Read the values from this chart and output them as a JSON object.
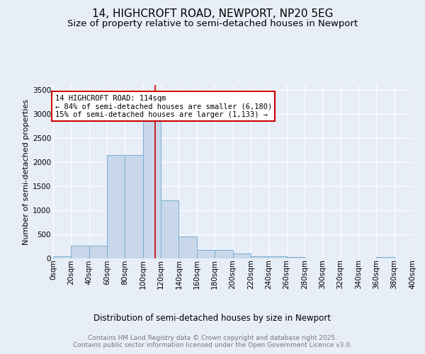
{
  "title1": "14, HIGHCROFT ROAD, NEWPORT, NP20 5EG",
  "title2": "Size of property relative to semi-detached houses in Newport",
  "xlabel": "Distribution of semi-detached houses by size in Newport",
  "ylabel": "Number of semi-detached properties",
  "bin_edges": [
    0,
    20,
    40,
    60,
    80,
    100,
    120,
    140,
    160,
    180,
    200,
    220,
    240,
    260,
    280,
    300,
    320,
    340,
    360,
    380,
    400
  ],
  "bar_heights": [
    40,
    260,
    270,
    2150,
    2150,
    3000,
    1200,
    460,
    170,
    170,
    100,
    50,
    50,
    30,
    0,
    0,
    0,
    0,
    30,
    0
  ],
  "bar_color": "#c8d8ea",
  "bar_edge_color": "#7aafd4",
  "property_size": 114,
  "vline_color": "#cc0000",
  "annotation_text": "14 HIGHCROFT ROAD: 114sqm\n← 84% of semi-detached houses are smaller (6,180)\n15% of semi-detached houses are larger (1,133) →",
  "annotation_box_color": "#ffffff",
  "annotation_box_edge": "#cc0000",
  "ylim": [
    0,
    3600
  ],
  "yticks": [
    0,
    500,
    1000,
    1500,
    2000,
    2500,
    3000,
    3500
  ],
  "bg_color": "#e8eef8",
  "plot_bg_color": "#e8eef8",
  "footer_text": "Contains HM Land Registry data © Crown copyright and database right 2025.\nContains public sector information licensed under the Open Government Licence v3.0.",
  "title1_fontsize": 11,
  "title2_fontsize": 9.5,
  "xlabel_fontsize": 8.5,
  "ylabel_fontsize": 8,
  "tick_fontsize": 7.5,
  "annotation_fontsize": 7.5,
  "footer_fontsize": 6.5
}
